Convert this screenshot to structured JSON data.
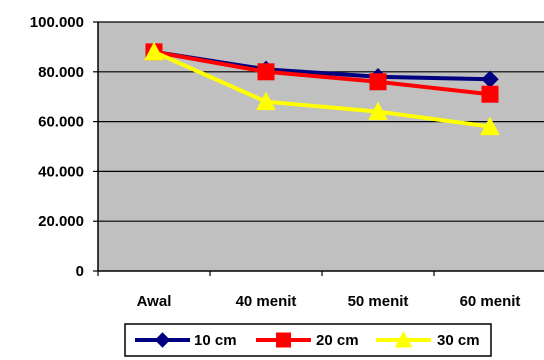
{
  "chart_data": {
    "type": "line",
    "categories": [
      "Awal",
      "40 menit",
      "50 menit",
      "60 menit"
    ],
    "series": [
      {
        "name": "10 cm",
        "values": [
          88,
          81,
          78,
          77
        ],
        "color": "#000080",
        "marker": "diamond"
      },
      {
        "name": "20 cm",
        "values": [
          88,
          80,
          76,
          71
        ],
        "color": "#ff0000",
        "marker": "square"
      },
      {
        "name": "30 cm",
        "values": [
          88,
          68,
          64,
          58
        ],
        "color": "#ffff00",
        "marker": "triangle"
      }
    ],
    "y_ticks": [
      0,
      20,
      40,
      60,
      80,
      100
    ],
    "y_tick_labels": [
      "0",
      "20.000",
      "40.000",
      "60.000",
      "80.000",
      "100.000"
    ],
    "ylim": [
      0,
      100
    ],
    "grid": true,
    "plot_background": "#c0c0c0",
    "legend_position": "bottom"
  }
}
